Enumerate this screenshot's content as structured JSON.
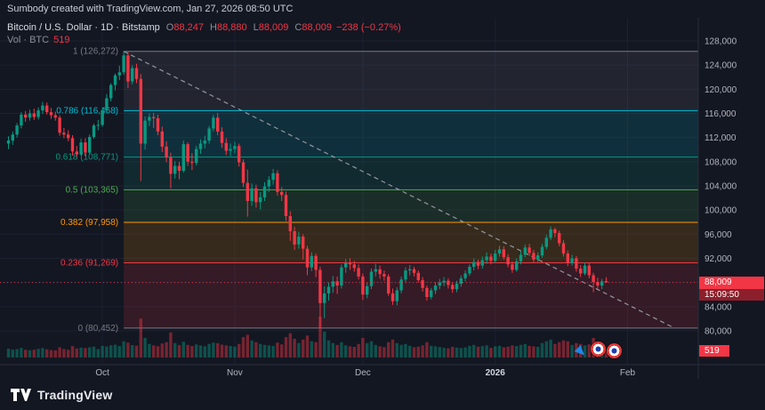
{
  "header": {
    "attribution": "Sumbody created with TradingView.com, Jan 27, 2026 08:50 UTC"
  },
  "legend": {
    "title": "Bitcoin / U.S. Dollar · 1D · Bitstamp",
    "o_label": "O",
    "o_value": "88,247",
    "h_label": "H",
    "h_value": "88,880",
    "l_label": "L",
    "l_value": "88,009",
    "c_label": "C",
    "c_value": "88,009",
    "change": "−238 (−0.27%)",
    "volume_label": "Vol · BTC",
    "volume_value": "519"
  },
  "price_scale": {
    "ticks": [
      "128,000",
      "124,000",
      "120,000",
      "116,000",
      "112,000",
      "108,000",
      "104,000",
      "100,000",
      "96,000",
      "92,000",
      "88,000",
      "84,000",
      "80,000"
    ],
    "last_price": "88,009",
    "countdown": "15:09:50",
    "volume_badge": "519"
  },
  "time_scale": {
    "labels": [
      {
        "text": "Oct",
        "index": 22,
        "major": false
      },
      {
        "text": "Nov",
        "index": 53,
        "major": false
      },
      {
        "text": "Dec",
        "index": 83,
        "major": false
      },
      {
        "text": "2026",
        "index": 114,
        "major": true
      },
      {
        "text": "Feb",
        "index": 145,
        "major": false
      }
    ]
  },
  "fib": {
    "start_index": 27,
    "end_index": 156,
    "levels": [
      {
        "ratio": "1",
        "price": 126272,
        "label": "1 (126,272)",
        "color": "#787b86"
      },
      {
        "ratio": "0.786",
        "price": 116468,
        "label": "0.786 (116,468)",
        "color": "#00bcd4"
      },
      {
        "ratio": "0.618",
        "price": 108771,
        "label": "0.618 (108,771)",
        "color": "#089981"
      },
      {
        "ratio": "0.5",
        "price": 103365,
        "label": "0.5 (103,365)",
        "color": "#4caf50"
      },
      {
        "ratio": "0.382",
        "price": 97958,
        "label": "0.382 (97,958)",
        "color": "#ff9800"
      },
      {
        "ratio": "0.236",
        "price": 91269,
        "label": "0.236 (91,269)",
        "color": "#f23645"
      },
      {
        "ratio": "0",
        "price": 80452,
        "label": "0 (80,452)",
        "color": "#787b86"
      }
    ]
  },
  "footer": {
    "brand": "TradingView"
  },
  "colors": {
    "up": "#089981",
    "down": "#f23645",
    "grid": "#1c2030",
    "text": "#b2b5be",
    "bg": "#131722",
    "border": "#2a2e39"
  },
  "chart_data": {
    "type": "candlestick",
    "title": "Bitcoin / U.S. Dollar, 1D, Bitstamp",
    "price_unit": "USD, candle values in thousands",
    "y_axis": {
      "min": 80000,
      "max": 128000,
      "tick_step": 4000
    },
    "x_axis": {
      "start_date": "2025-09-09",
      "end_date": "2026-01-27",
      "interval": "1 day"
    },
    "last_candle": {
      "open": 88247,
      "high": 88880,
      "low": 88009,
      "close": 88009,
      "change": -238,
      "change_pct": -0.27
    },
    "candles": [
      [
        111.0,
        112.2,
        110.1,
        111.5
      ],
      [
        111.5,
        113.0,
        110.8,
        112.5
      ],
      [
        112.5,
        114.4,
        112.0,
        114.0
      ],
      [
        114.0,
        116.2,
        113.5,
        115.8
      ],
      [
        115.8,
        116.4,
        114.6,
        115.3
      ],
      [
        115.3,
        116.6,
        114.8,
        116.0
      ],
      [
        116.0,
        116.8,
        114.9,
        115.4
      ],
      [
        115.4,
        117.0,
        115.0,
        116.5
      ],
      [
        116.5,
        117.9,
        115.9,
        117.3
      ],
      [
        117.3,
        117.8,
        115.8,
        116.2
      ],
      [
        116.2,
        116.9,
        115.1,
        115.7
      ],
      [
        115.7,
        116.3,
        114.8,
        115.3
      ],
      [
        115.3,
        115.7,
        112.3,
        112.8
      ],
      [
        112.8,
        113.6,
        111.9,
        112.5
      ],
      [
        112.5,
        113.2,
        111.4,
        111.9
      ],
      [
        111.9,
        112.4,
        109.0,
        109.7
      ],
      [
        109.7,
        110.6,
        108.8,
        109.2
      ],
      [
        109.2,
        111.8,
        109.0,
        111.2
      ],
      [
        111.2,
        111.9,
        108.9,
        109.5
      ],
      [
        109.5,
        112.5,
        109.3,
        112.1
      ],
      [
        112.1,
        114.3,
        111.8,
        114.0
      ],
      [
        114.0,
        114.9,
        113.2,
        114.1
      ],
      [
        114.1,
        117.0,
        113.8,
        116.5
      ],
      [
        116.5,
        119.2,
        116.0,
        118.5
      ],
      [
        118.5,
        121.0,
        118.0,
        120.7
      ],
      [
        120.7,
        122.6,
        119.8,
        122.3
      ],
      [
        122.3,
        123.9,
        121.5,
        122.8
      ],
      [
        122.8,
        126.3,
        122.4,
        125.6
      ],
      [
        125.6,
        126.2,
        120.2,
        121.3
      ],
      [
        121.3,
        124.0,
        120.8,
        123.5
      ],
      [
        123.5,
        124.2,
        121.0,
        121.7
      ],
      [
        121.7,
        122.5,
        104.8,
        111.0
      ],
      [
        111.0,
        115.5,
        110.0,
        114.8
      ],
      [
        114.8,
        116.0,
        113.9,
        115.4
      ],
      [
        115.4,
        116.1,
        113.6,
        115.2
      ],
      [
        115.2,
        115.8,
        112.4,
        113.0
      ],
      [
        113.0,
        113.8,
        109.6,
        110.5
      ],
      [
        110.5,
        111.4,
        107.9,
        108.7
      ],
      [
        108.7,
        109.5,
        103.6,
        106.0
      ],
      [
        106.0,
        108.1,
        105.2,
        107.3
      ],
      [
        107.3,
        108.0,
        105.1,
        106.5
      ],
      [
        106.5,
        111.5,
        106.2,
        110.9
      ],
      [
        110.9,
        111.2,
        107.3,
        108.0
      ],
      [
        108.0,
        109.4,
        106.6,
        107.8
      ],
      [
        107.8,
        110.6,
        107.4,
        110.1
      ],
      [
        110.1,
        111.7,
        109.3,
        111.0
      ],
      [
        111.0,
        112.3,
        110.2,
        111.5
      ],
      [
        111.5,
        113.9,
        111.0,
        113.5
      ],
      [
        113.5,
        115.8,
        113.0,
        115.3
      ],
      [
        115.3,
        116.1,
        112.4,
        113.0
      ],
      [
        113.0,
        113.7,
        110.3,
        111.1
      ],
      [
        111.1,
        111.9,
        109.1,
        109.8
      ],
      [
        109.8,
        111.0,
        108.9,
        110.1
      ],
      [
        110.1,
        111.3,
        109.4,
        110.6
      ],
      [
        110.6,
        111.0,
        107.2,
        107.9
      ],
      [
        107.9,
        108.4,
        103.8,
        104.5
      ],
      [
        104.5,
        106.7,
        98.9,
        101.5
      ],
      [
        101.5,
        104.4,
        100.7,
        103.6
      ],
      [
        103.6,
        104.2,
        100.4,
        101.3
      ],
      [
        101.3,
        103.0,
        100.1,
        102.1
      ],
      [
        102.1,
        104.6,
        101.5,
        103.9
      ],
      [
        103.9,
        105.6,
        103.0,
        105.0
      ],
      [
        105.0,
        106.8,
        104.2,
        106.1
      ],
      [
        106.1,
        106.6,
        102.4,
        103.0
      ],
      [
        103.0,
        103.8,
        101.5,
        102.5
      ],
      [
        102.5,
        103.1,
        98.2,
        99.0
      ],
      [
        99.0,
        99.8,
        94.9,
        96.5
      ],
      [
        96.5,
        97.2,
        93.4,
        94.3
      ],
      [
        94.3,
        96.4,
        93.6,
        95.6
      ],
      [
        95.6,
        96.0,
        91.8,
        93.6
      ],
      [
        93.6,
        94.1,
        89.2,
        90.5
      ],
      [
        90.5,
        93.0,
        89.9,
        92.4
      ],
      [
        92.4,
        92.8,
        88.9,
        90.1
      ],
      [
        90.1,
        90.6,
        80.5,
        84.6
      ],
      [
        84.6,
        87.4,
        82.1,
        86.2
      ],
      [
        86.2,
        88.0,
        85.0,
        87.3
      ],
      [
        87.3,
        89.1,
        86.3,
        88.2
      ],
      [
        88.2,
        89.0,
        86.1,
        87.5
      ],
      [
        87.5,
        91.0,
        87.0,
        90.5
      ],
      [
        90.5,
        91.9,
        89.6,
        91.2
      ],
      [
        91.2,
        92.0,
        90.1,
        91.0
      ],
      [
        91.0,
        91.6,
        89.8,
        90.4
      ],
      [
        90.4,
        91.0,
        88.5,
        89.0
      ],
      [
        89.0,
        89.5,
        85.1,
        86.0
      ],
      [
        86.0,
        88.0,
        85.4,
        87.4
      ],
      [
        87.4,
        90.3,
        86.9,
        89.8
      ],
      [
        89.8,
        91.1,
        89.0,
        90.2
      ],
      [
        90.2,
        90.8,
        88.6,
        89.4
      ],
      [
        89.4,
        90.0,
        88.3,
        89.0
      ],
      [
        89.0,
        89.4,
        85.8,
        86.2
      ],
      [
        86.2,
        87.0,
        84.3,
        84.9
      ],
      [
        84.9,
        87.2,
        84.2,
        86.7
      ],
      [
        86.7,
        89.0,
        86.2,
        88.5
      ],
      [
        88.5,
        90.5,
        88.0,
        90.0
      ],
      [
        90.0,
        90.9,
        89.2,
        90.2
      ],
      [
        90.2,
        90.6,
        89.0,
        89.6
      ],
      [
        89.6,
        90.0,
        88.0,
        88.4
      ],
      [
        88.4,
        88.9,
        86.5,
        87.1
      ],
      [
        87.1,
        87.5,
        85.0,
        85.6
      ],
      [
        85.6,
        87.1,
        85.2,
        86.7
      ],
      [
        86.7,
        88.0,
        86.1,
        87.5
      ],
      [
        87.5,
        88.6,
        86.9,
        88.0
      ],
      [
        88.0,
        88.9,
        87.4,
        88.3
      ],
      [
        88.3,
        88.7,
        87.0,
        87.6
      ],
      [
        87.6,
        88.1,
        86.3,
        86.9
      ],
      [
        86.9,
        88.3,
        86.4,
        87.8
      ],
      [
        87.8,
        89.2,
        87.3,
        88.7
      ],
      [
        88.7,
        90.0,
        88.2,
        89.5
      ],
      [
        89.5,
        91.0,
        89.1,
        90.6
      ],
      [
        90.6,
        92.0,
        90.0,
        91.4
      ],
      [
        91.4,
        91.8,
        90.2,
        90.8
      ],
      [
        90.8,
        92.3,
        90.3,
        91.7
      ],
      [
        91.7,
        93.0,
        91.1,
        92.3
      ],
      [
        92.3,
        92.8,
        91.0,
        91.6
      ],
      [
        91.6,
        93.4,
        91.2,
        92.8
      ],
      [
        92.8,
        94.1,
        92.3,
        93.5
      ],
      [
        93.5,
        94.0,
        91.8,
        92.2
      ],
      [
        92.2,
        92.7,
        90.5,
        91.0
      ],
      [
        91.0,
        91.5,
        89.6,
        90.1
      ],
      [
        90.1,
        92.0,
        89.8,
        91.5
      ],
      [
        91.5,
        93.2,
        91.0,
        92.6
      ],
      [
        92.6,
        94.3,
        92.2,
        93.8
      ],
      [
        93.8,
        94.4,
        92.4,
        92.9
      ],
      [
        92.9,
        93.4,
        91.2,
        91.8
      ],
      [
        91.8,
        93.0,
        91.4,
        92.5
      ],
      [
        92.5,
        94.4,
        92.1,
        93.9
      ],
      [
        93.9,
        95.9,
        93.5,
        95.4
      ],
      [
        95.4,
        97.3,
        95.0,
        96.8
      ],
      [
        96.8,
        97.1,
        95.5,
        96.2
      ],
      [
        96.2,
        96.6,
        94.0,
        94.5
      ],
      [
        94.5,
        95.0,
        92.3,
        92.8
      ],
      [
        92.8,
        93.3,
        90.7,
        91.2
      ],
      [
        91.2,
        92.6,
        90.8,
        92.0
      ],
      [
        92.0,
        92.4,
        89.8,
        90.3
      ],
      [
        90.3,
        90.9,
        88.9,
        89.5
      ],
      [
        89.5,
        91.3,
        89.2,
        90.8
      ],
      [
        90.8,
        91.2,
        88.7,
        89.2
      ],
      [
        89.2,
        89.6,
        86.4,
        88.1
      ],
      [
        88.1,
        88.8,
        87.0,
        87.5
      ],
      [
        87.5,
        88.6,
        86.9,
        88.2
      ],
      [
        88.247,
        88.88,
        88.009,
        88.009
      ]
    ],
    "volumes": [
      620,
      540,
      580,
      700,
      520,
      490,
      530,
      610,
      680,
      560,
      500,
      470,
      760,
      590,
      520,
      880,
      640,
      720,
      690,
      750,
      820,
      580,
      900,
      840,
      960,
      1020,
      880,
      1400,
      1250,
      980,
      920,
      4500,
      1800,
      1100,
      950,
      870,
      1150,
      1300,
      2500,
      1200,
      980,
      1350,
      1000,
      890,
      1050,
      940,
      860,
      1100,
      1250,
      1180,
      1020,
      950,
      880,
      820,
      1100,
      1900,
      2200,
      1500,
      1300,
      1100,
      1000,
      950,
      900,
      1250,
      1050,
      1900,
      2400,
      1700,
      1200,
      1600,
      2100,
      1400,
      1300,
      4800,
      2600,
      1500,
      1200,
      1000,
      1300,
      950,
      850,
      800,
      1100,
      1800,
      1200,
      1400,
      1000,
      850,
      780,
      1300,
      1600,
      1200,
      1000,
      1100,
      900,
      760,
      820,
      950,
      1300,
      900,
      850,
      780,
      700,
      650,
      800,
      720,
      680,
      750,
      900,
      1000,
      820,
      880,
      950,
      700,
      850,
      900,
      760,
      820,
      950,
      880,
      1000,
      1100,
      900,
      850,
      800,
      1200,
      1400,
      1600,
      1100,
      1300,
      1500,
      1400,
      1000,
      1200,
      1100,
      950,
      1050,
      1800,
      1200,
      900,
      519
    ]
  }
}
